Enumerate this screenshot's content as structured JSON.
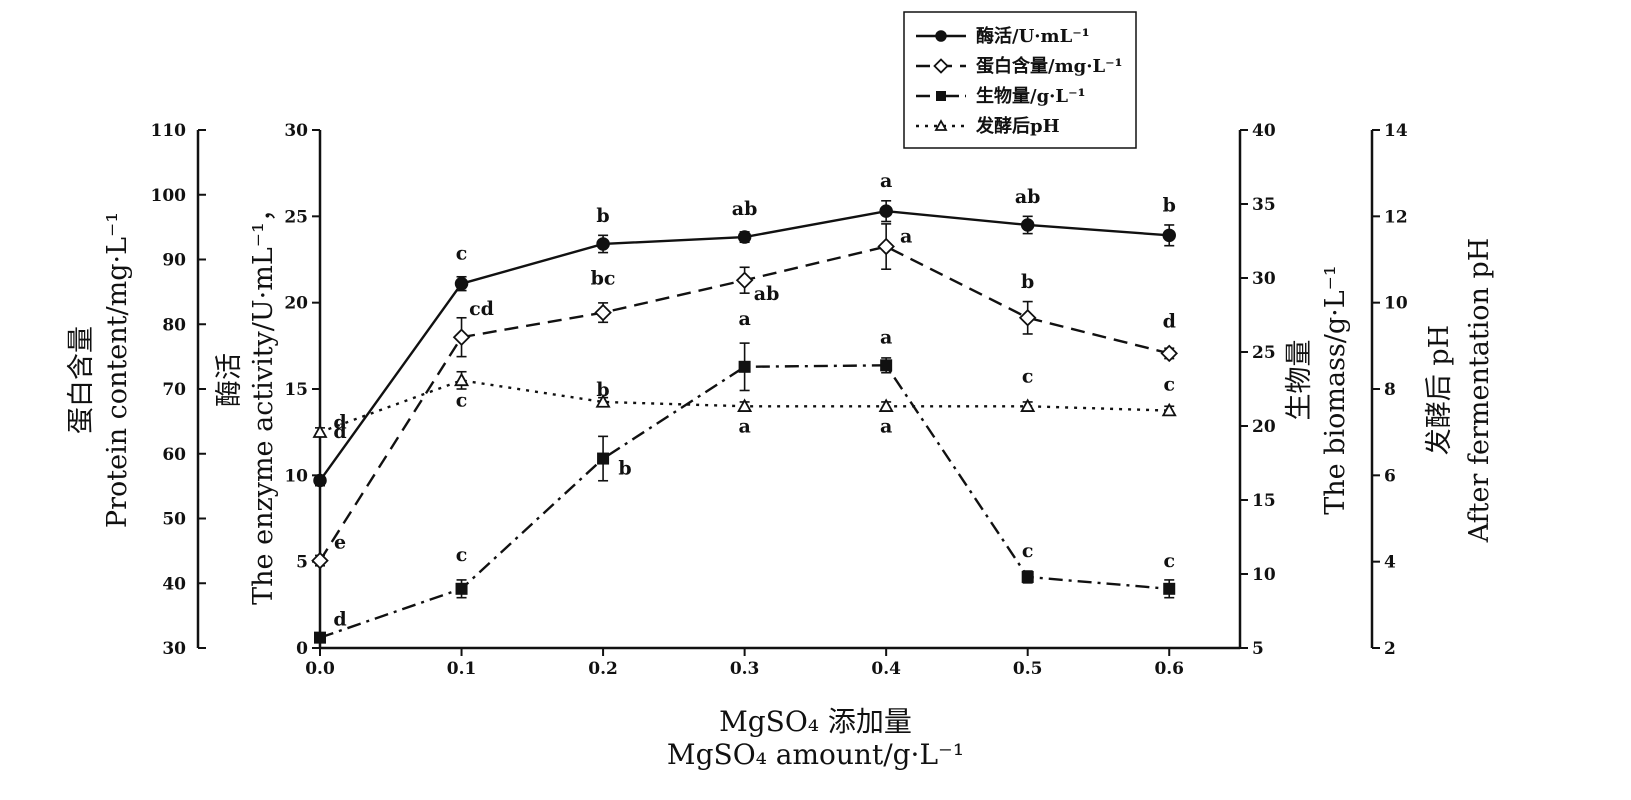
{
  "chart_data": {
    "type": "line",
    "x": [
      0.0,
      0.1,
      0.2,
      0.3,
      0.4,
      0.5,
      0.6
    ],
    "x_tick_labels": [
      "0.0",
      "0.1",
      "0.2",
      "0.3",
      "0.4",
      "0.5",
      "0.6"
    ],
    "xlim": [
      0.0,
      0.65
    ],
    "xlabel_cn": "MgSO₄ 添加量",
    "xlabel_en": "MgSO₄ amount/g·L⁻¹",
    "axes": {
      "enzyme": {
        "ylim": [
          0,
          30
        ],
        "ticks": [
          "0",
          "5",
          "10",
          "15",
          "20",
          "25",
          "30"
        ],
        "label_cn": "酶活",
        "label_en": "The enzyme activity/U·mL⁻¹，"
      },
      "protein": {
        "ylim": [
          30,
          110
        ],
        "ticks": [
          "30",
          "40",
          "50",
          "60",
          "70",
          "80",
          "90",
          "100",
          "110"
        ],
        "label_cn": "蛋白含量",
        "label_en": "Protein content/mg·L⁻¹"
      },
      "biomass": {
        "ylim": [
          5,
          40
        ],
        "ticks": [
          "5",
          "10",
          "15",
          "20",
          "25",
          "30",
          "35",
          "40"
        ],
        "label_cn": "生物量",
        "label_en": "The biomass/g·L⁻¹"
      },
      "ph": {
        "ylim": [
          2,
          14
        ],
        "ticks": [
          "2",
          "4",
          "6",
          "8",
          "10",
          "12",
          "14"
        ],
        "label_cn": "发酵后 pH",
        "label_en": "After fermentation pH"
      }
    },
    "series": [
      {
        "name": "酶活/U·mL⁻¹",
        "axis": "enzyme",
        "style": "solid",
        "marker": "circle",
        "values": [
          9.7,
          21.1,
          23.4,
          23.8,
          25.3,
          24.5,
          23.9
        ],
        "errors": [
          0.3,
          0.4,
          0.5,
          0.3,
          0.6,
          0.5,
          0.6
        ],
        "sig": [
          "d",
          "c",
          "b",
          "ab",
          "a",
          "ab",
          "b"
        ]
      },
      {
        "name": "蛋白含量/mg·L⁻¹",
        "axis": "protein",
        "style": "dashed",
        "marker": "diamond",
        "values": [
          43.5,
          78.0,
          81.8,
          86.8,
          92.0,
          81.0,
          75.5
        ],
        "errors": [
          0.8,
          3.0,
          1.5,
          2.0,
          3.5,
          2.5,
          0.8
        ],
        "sig": [
          "e",
          "cd",
          "bc",
          "ab",
          "a",
          "b",
          "d"
        ]
      },
      {
        "name": "生物量/g·L⁻¹",
        "axis": "biomass",
        "style": "dashdot",
        "marker": "square",
        "values": [
          5.7,
          9.0,
          17.8,
          24.0,
          24.1,
          9.8,
          9.0
        ],
        "errors": [
          0.2,
          0.6,
          1.5,
          1.6,
          0.5,
          0.4,
          0.6
        ],
        "sig": [
          "d",
          "c",
          "b",
          "a",
          "a",
          "c",
          "c"
        ]
      },
      {
        "name": "发酵后pH",
        "axis": "ph",
        "style": "dotted",
        "marker": "triangle",
        "values": [
          7.0,
          8.2,
          7.7,
          7.6,
          7.6,
          7.6,
          7.5
        ],
        "errors": [
          0.1,
          0.2,
          0.1,
          0.1,
          0.1,
          0.1,
          0.1
        ],
        "sig": [
          "d",
          "c",
          "b",
          "a",
          "a",
          "c",
          "c"
        ]
      }
    ],
    "legend_position": "top-center"
  }
}
